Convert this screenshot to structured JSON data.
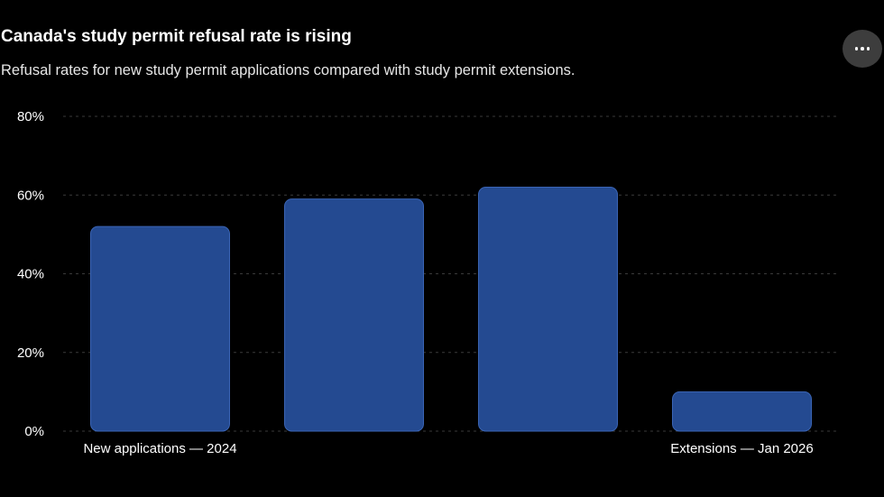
{
  "header": {
    "title": "Canada's study permit refusal rate is rising",
    "subtitle": "Refusal rates for new study permit applications compared with study permit extensions.",
    "more_button_icon": "more-horizontal-icon"
  },
  "colors": {
    "background": "#000000",
    "bar": "#244a91",
    "bar_border": "#3a64b4",
    "grid": "#3a3a3a",
    "text": "#ffffff"
  },
  "chart_data": {
    "type": "bar",
    "title": "Canada's study permit refusal rate is rising",
    "subtitle": "Refusal rates for new study permit applications compared with study permit extensions.",
    "xlabel": "",
    "ylabel": "",
    "ylim": [
      0,
      80
    ],
    "yticks": [
      0,
      20,
      40,
      60,
      80
    ],
    "ytick_labels": [
      "0%",
      "20%",
      "40%",
      "60%",
      "80%"
    ],
    "grid": true,
    "category_labels": [
      "New applications — 2024",
      "",
      "",
      "Extensions — Jan 2026"
    ],
    "values": [
      52,
      59,
      62,
      10
    ]
  }
}
